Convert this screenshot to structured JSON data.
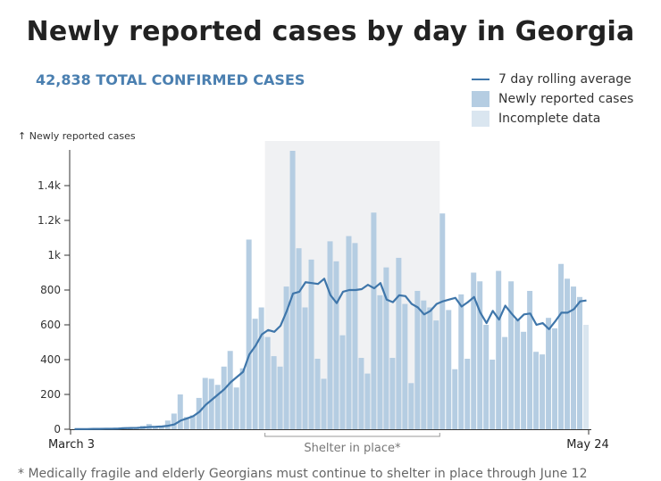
{
  "chart_data": {
    "type": "bar",
    "title": "Newly reported cases by day in Georgia",
    "subtitle": "42,838 TOTAL CONFIRMED CASES",
    "ylabel": "↑ Newly reported cases",
    "xlabel": "",
    "ylim": [
      0,
      1650
    ],
    "yticks": [
      0,
      200,
      400,
      600,
      800,
      1000,
      1200,
      1400
    ],
    "ytick_labels": [
      "0",
      "200",
      "400",
      "600",
      "800",
      "1k",
      "1.2k",
      "1.4k"
    ],
    "x_start_label": "March 3",
    "x_end_label": "May 24",
    "legend_position": "top-right",
    "legend": [
      {
        "label": "7 day rolling average",
        "type": "line",
        "color": "#3f76aa"
      },
      {
        "label": "Newly reported cases",
        "type": "bar",
        "color": "#b5cde2"
      },
      {
        "label": "Incomplete data",
        "type": "bar",
        "color": "#dae6f0"
      }
    ],
    "annotation": {
      "label": "Shelter in place*",
      "start_day_index": 31,
      "end_day_index": 58
    },
    "footnote": "* Medically fragile and elderly Georgians must continue to shelter in place through June 12",
    "incomplete_from_index": 82,
    "values": [
      2,
      0,
      0,
      3,
      5,
      3,
      6,
      5,
      12,
      10,
      11,
      20,
      30,
      12,
      18,
      50,
      90,
      200,
      70,
      80,
      180,
      295,
      290,
      255,
      360,
      450,
      240,
      350,
      1090,
      635,
      700,
      530,
      420,
      360,
      820,
      1600,
      1040,
      700,
      975,
      405,
      290,
      1080,
      965,
      540,
      1110,
      1070,
      410,
      320,
      1245,
      770,
      930,
      410,
      985,
      720,
      265,
      795,
      740,
      700,
      625,
      1240,
      685,
      345,
      775,
      405,
      900,
      850,
      600,
      400,
      910,
      530,
      850,
      630,
      560,
      795,
      445,
      430,
      640,
      580,
      950,
      865,
      820,
      760,
      600
    ],
    "rolling_avg": [
      1,
      1,
      1,
      2,
      2,
      3,
      3,
      4,
      6,
      7,
      8,
      10,
      13,
      14,
      16,
      20,
      28,
      50,
      62,
      75,
      100,
      140,
      170,
      200,
      230,
      270,
      300,
      330,
      430,
      480,
      545,
      570,
      560,
      595,
      680,
      780,
      790,
      845,
      840,
      835,
      865,
      770,
      725,
      790,
      800,
      800,
      805,
      830,
      810,
      840,
      745,
      730,
      770,
      765,
      720,
      700,
      660,
      680,
      720,
      735,
      745,
      755,
      705,
      730,
      760,
      670,
      610,
      680,
      630,
      710,
      665,
      625,
      660,
      665,
      600,
      610,
      575,
      620,
      670,
      670,
      690,
      735,
      740
    ]
  }
}
